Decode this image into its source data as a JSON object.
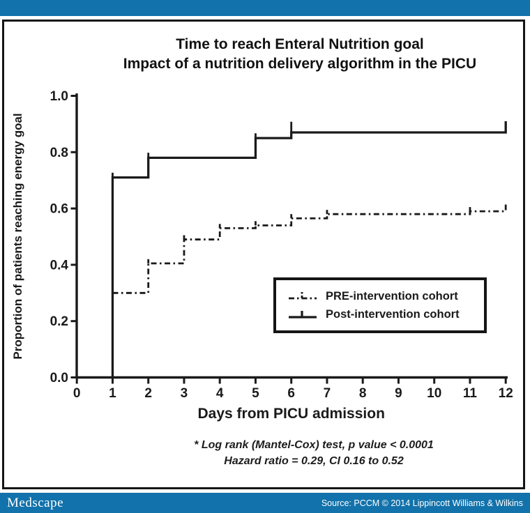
{
  "header": {
    "bar_color": "#1272ab"
  },
  "footer": {
    "logo": "Medscape",
    "source": "Source: PCCM © 2014 Lippincott Williams & Wilkins",
    "bar_color": "#1272ab"
  },
  "chart_data": {
    "type": "step-line",
    "subtype": "kaplan-meier",
    "title_line1": "Time to reach Enteral Nutrition goal",
    "title_line2": "Impact of a nutrition delivery algorithm in the PICU",
    "x_axis": {
      "label": "Days from PICU admission",
      "ticks": [
        "0",
        "1",
        "2",
        "3",
        "4",
        "5",
        "6",
        "7",
        "8",
        "9",
        "10",
        "11",
        "12"
      ],
      "range": [
        0,
        12
      ]
    },
    "y_axis": {
      "label": "Proportion of patients reaching energy goal",
      "ticks": [
        "0.0",
        "0.2",
        "0.4",
        "0.6",
        "0.8",
        "1.0"
      ],
      "range": [
        0.0,
        1.0
      ]
    },
    "grid": false,
    "line_color": "#1a1a1a",
    "legend": {
      "position": "inside-lower-right",
      "items": [
        {
          "label": "PRE-intervention cohort",
          "symbol": "dash-dot-line-with-tick"
        },
        {
          "label": "Post-intervention cohort",
          "symbol": "solid-line-with-tick"
        }
      ]
    },
    "series": [
      {
        "name": "PRE-intervention cohort",
        "line_style": "dash-dot",
        "starts_from_zero": false,
        "steps": [
          [
            1,
            0.3
          ],
          [
            2,
            0.405
          ],
          [
            3,
            0.49
          ],
          [
            4,
            0.53
          ],
          [
            5,
            0.54
          ],
          [
            6,
            0.565
          ],
          [
            7,
            0.58
          ],
          [
            11,
            0.59
          ]
        ],
        "end_tick": {
          "day": 12,
          "to": 0.615
        },
        "censor_ticks": [
          {
            "day": 2,
            "from": 0.405,
            "to": 0.42
          },
          {
            "day": 3,
            "from": 0.49,
            "to": 0.505
          },
          {
            "day": 4,
            "from": 0.53,
            "to": 0.545
          },
          {
            "day": 5,
            "from": 0.54,
            "to": 0.555
          },
          {
            "day": 6,
            "from": 0.565,
            "to": 0.58
          },
          {
            "day": 7,
            "from": 0.58,
            "to": 0.595
          },
          {
            "day": 11,
            "from": 0.583,
            "to": 0.605
          }
        ]
      },
      {
        "name": "Post-intervention cohort",
        "line_style": "solid",
        "starts_from_zero": true,
        "steps": [
          [
            1,
            0.71
          ],
          [
            2,
            0.78
          ],
          [
            5,
            0.85
          ],
          [
            6,
            0.87
          ]
        ],
        "end_tick": {
          "day": 12,
          "to": 0.91
        },
        "censor_ticks": [
          {
            "day": 1,
            "from": 0.71,
            "to": 0.727
          },
          {
            "day": 2,
            "from": 0.78,
            "to": 0.798
          },
          {
            "day": 5,
            "from": 0.85,
            "to": 0.867
          },
          {
            "day": 6,
            "from": 0.87,
            "to": 0.908
          }
        ]
      }
    ],
    "footnote_line1": "* Log rank (Mantel-Cox) test, p value < 0.0001",
    "footnote_line2": "Hazard ratio = 0.29, CI 0.16 to 0.52"
  }
}
